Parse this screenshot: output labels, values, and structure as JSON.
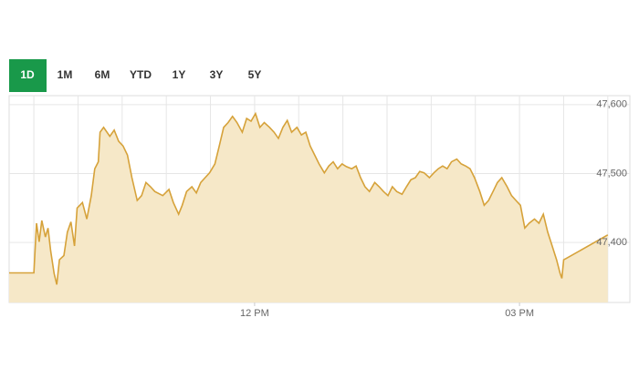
{
  "tabs": {
    "items": [
      "1D",
      "1M",
      "6M",
      "YTD",
      "1Y",
      "3Y",
      "5Y"
    ],
    "active": 0
  },
  "chart_data": {
    "type": "area",
    "x": [
      9.22,
      9.5,
      9.53,
      9.56,
      9.59,
      9.63,
      9.66,
      9.69,
      9.73,
      9.76,
      9.79,
      9.84,
      9.88,
      9.92,
      9.96,
      9.99,
      10.05,
      10.1,
      10.15,
      10.19,
      10.23,
      10.25,
      10.29,
      10.36,
      10.41,
      10.46,
      10.51,
      10.56,
      10.61,
      10.67,
      10.72,
      10.77,
      10.82,
      10.87,
      10.96,
      11.03,
      11.08,
      11.14,
      11.18,
      11.23,
      11.29,
      11.34,
      11.39,
      11.44,
      11.49,
      11.55,
      11.6,
      11.65,
      11.7,
      11.75,
      11.8,
      11.86,
      11.91,
      11.96,
      12.01,
      12.06,
      12.11,
      12.17,
      12.22,
      12.27,
      12.32,
      12.37,
      12.42,
      12.48,
      12.53,
      12.58,
      12.63,
      12.68,
      12.73,
      12.79,
      12.84,
      12.89,
      12.94,
      12.99,
      13.04,
      13.1,
      13.15,
      13.2,
      13.25,
      13.3,
      13.36,
      13.41,
      13.46,
      13.51,
      13.56,
      13.61,
      13.67,
      13.72,
      13.77,
      13.82,
      13.87,
      13.92,
      13.98,
      14.03,
      14.08,
      14.13,
      14.18,
      14.23,
      14.29,
      14.34,
      14.39,
      14.44,
      14.49,
      14.55,
      14.6,
      14.65,
      14.7,
      14.75,
      14.8,
      14.86,
      14.91,
      14.96,
      15.01,
      15.06,
      15.11,
      15.17,
      15.22,
      15.27,
      15.32,
      15.37,
      15.42,
      15.46,
      15.48,
      15.5,
      15.53,
      16.0
    ],
    "values": [
      47356,
      47356,
      47428,
      47401,
      47432,
      47408,
      47421,
      47388,
      47355,
      47339,
      47375,
      47381,
      47415,
      47430,
      47395,
      47450,
      47458,
      47434,
      47468,
      47507,
      47517,
      47560,
      47567,
      47554,
      47563,
      47547,
      47540,
      47527,
      47494,
      47461,
      47468,
      47487,
      47481,
      47474,
      47468,
      47477,
      47458,
      47441,
      47454,
      47474,
      47481,
      47472,
      47487,
      47494,
      47501,
      47514,
      47540,
      47567,
      47574,
      47583,
      47574,
      47560,
      47580,
      47576,
      47587,
      47567,
      47574,
      47567,
      47560,
      47551,
      47567,
      47577,
      47560,
      47567,
      47556,
      47560,
      47540,
      47527,
      47514,
      47501,
      47511,
      47517,
      47507,
      47514,
      47510,
      47507,
      47511,
      47494,
      47481,
      47474,
      47487,
      47481,
      47474,
      47468,
      47481,
      47474,
      47470,
      47481,
      47491,
      47494,
      47503,
      47501,
      47494,
      47501,
      47507,
      47511,
      47507,
      47517,
      47521,
      47514,
      47511,
      47507,
      47494,
      47474,
      47454,
      47461,
      47474,
      47487,
      47494,
      47481,
      47468,
      47461,
      47454,
      47421,
      47428,
      47434,
      47428,
      47441,
      47415,
      47395,
      47375,
      47355,
      47348,
      47375,
      47377,
      47411
    ],
    "color": "#d6a23a",
    "area_color": "#f6e8c8",
    "xlim": [
      9.22,
      16.25
    ],
    "xticks": [
      {
        "value": 12,
        "label": "12 PM"
      },
      {
        "value": 15,
        "label": "03 PM"
      }
    ],
    "ylim": [
      47313,
      47613
    ],
    "yticks": [
      {
        "value": 47400,
        "label": "47,400"
      },
      {
        "value": 47500,
        "label": "47,500"
      },
      {
        "value": 47600,
        "label": "47,600"
      }
    ],
    "grid": true
  }
}
